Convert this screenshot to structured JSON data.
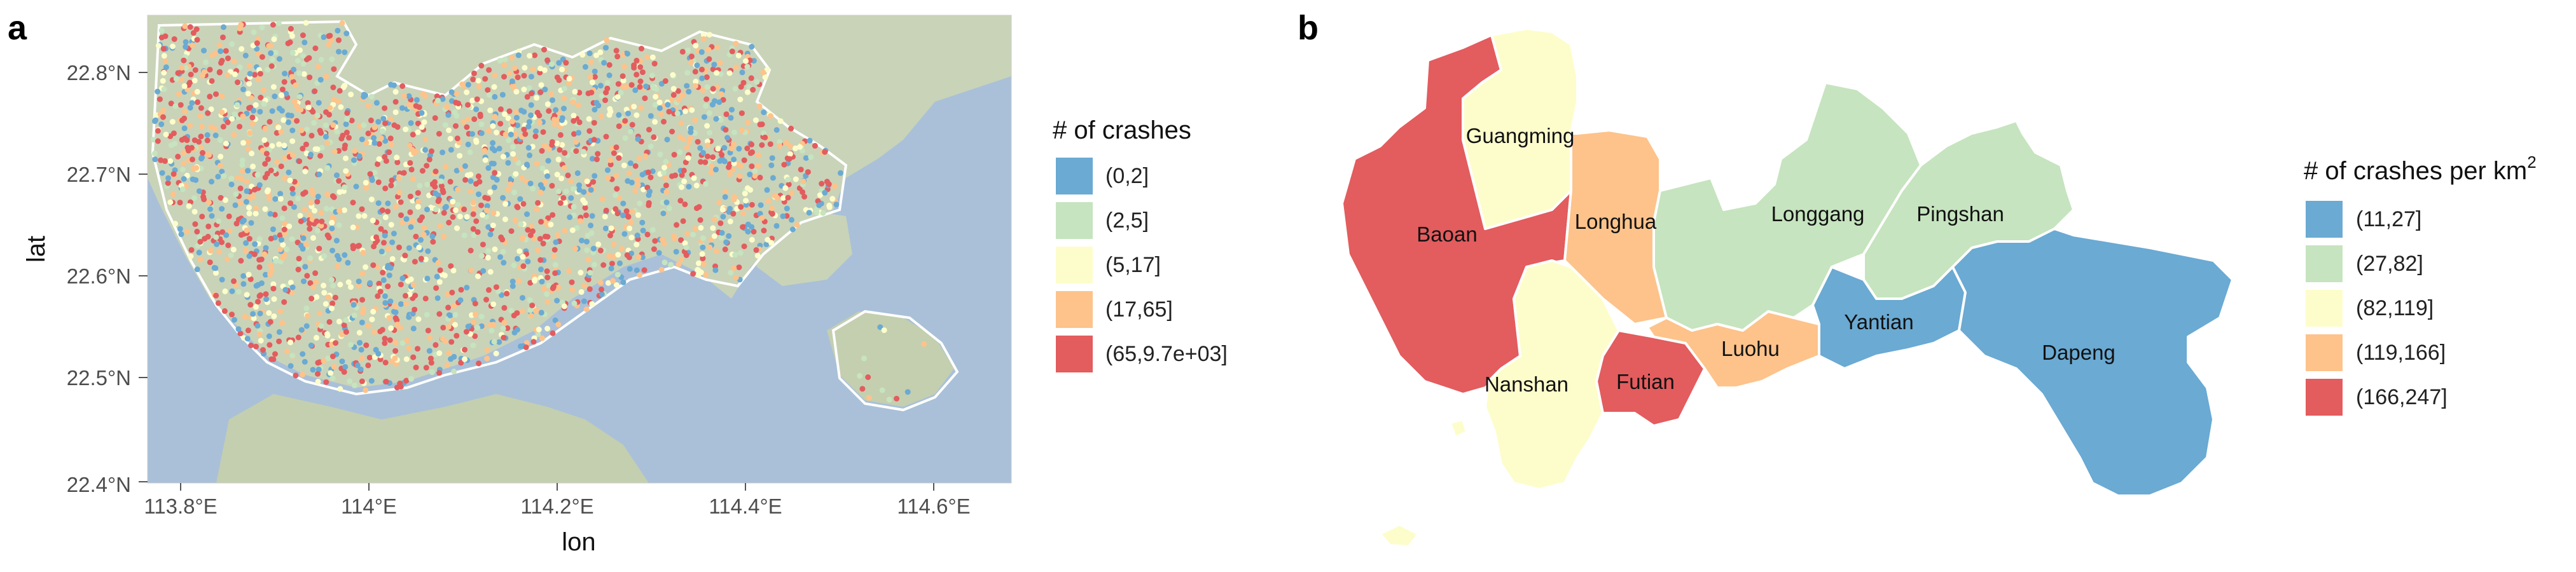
{
  "colors": {
    "c1": "#6aaad3",
    "c2": "#c6e4bf",
    "c3": "#fdfdcb",
    "c4": "#fdc38b",
    "c5": "#e35c5e",
    "water": "#a9c0d8",
    "land": "#c9d3b8",
    "boundary": "#ffffff"
  },
  "panel_a": {
    "label": "a",
    "xlabel": "lon",
    "ylabel": "lat",
    "x_ticks": [
      "113.8°E",
      "114°E",
      "114.2°E",
      "114.4°E",
      "114.6°E"
    ],
    "y_ticks": [
      "22.8°N",
      "22.7°N",
      "22.6°N",
      "22.5°N",
      "22.4°N"
    ],
    "legend": {
      "title": "# of crashes",
      "items": [
        {
          "label": "(0,2]",
          "color": "#6aaad3"
        },
        {
          "label": "(2,5]",
          "color": "#c6e4bf"
        },
        {
          "label": "(5,17]",
          "color": "#fdfdcb"
        },
        {
          "label": "(17,65]",
          "color": "#fdc38b"
        },
        {
          "label": "(65,9.7e+03]",
          "color": "#e35c5e"
        }
      ]
    }
  },
  "panel_b": {
    "label": "b",
    "legend": {
      "title": "# of crashes per km",
      "title_sup": "2",
      "items": [
        {
          "label": "(11,27]",
          "color": "#6aaad3"
        },
        {
          "label": "(27,82]",
          "color": "#c6e4bf"
        },
        {
          "label": "(82,119]",
          "color": "#fdfdcb"
        },
        {
          "label": "(119,166]",
          "color": "#fdc38b"
        },
        {
          "label": "(166,247]",
          "color": "#e35c5e"
        }
      ]
    },
    "districts": {
      "guangming": "Guangming",
      "baoan": "Baoan",
      "longhua": "Longhua",
      "longgang": "Longgang",
      "pingshan": "Pingshan",
      "nanshan": "Nanshan",
      "futian": "Futian",
      "luohu": "Luohu",
      "yantian": "Yantian",
      "dapeng": "Dapeng"
    }
  }
}
